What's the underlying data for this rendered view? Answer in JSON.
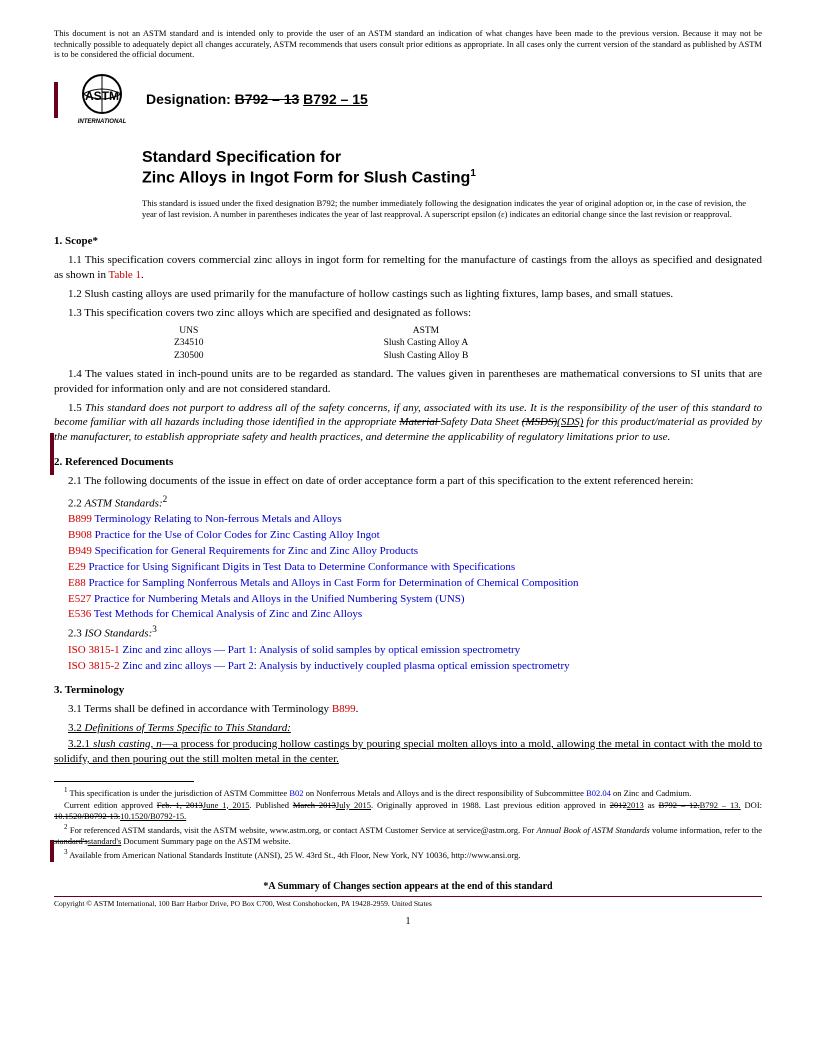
{
  "disclaimer": "This document is not an ASTM standard and is intended only to provide the user of an ASTM standard an indication of what changes have been made to the previous version. Because it may not be technically possible to adequately depict all changes accurately, ASTM recommends that users consult prior editions as appropriate. In all cases only the current version of the standard as published by ASTM is to be considered the official document.",
  "designation_label": "Designation:",
  "designation_old": "B792 – 13",
  "designation_new": "B792 – 15",
  "title_line1": "Standard Specification for",
  "title_line2": "Zinc Alloys in Ingot Form for Slush Casting",
  "title_super": "1",
  "issuance": "This standard is issued under the fixed designation B792; the number immediately following the designation indicates the year of original adoption or, in the case of revision, the year of last revision. A number in parentheses indicates the year of last reapproval. A superscript epsilon (ε) indicates an editorial change since the last revision or reapproval.",
  "sec1_header": "1. Scope*",
  "sec1_1a": "1.1 This specification covers commercial zinc alloys in ingot form for remelting for the manufacture of castings from the alloys as specified and designated as shown in ",
  "sec1_1_table": "Table 1",
  "sec1_1b": ".",
  "sec1_2": "1.2 Slush casting alloys are used primarily for the manufacture of hollow castings such as lighting fixtures, lamp bases, and small statues.",
  "sec1_3": "1.3 This specification covers two zinc alloys which are specified and designated as follows:",
  "alloy_uns_h": "UNS",
  "alloy_uns_1": "Z34510",
  "alloy_uns_2": "Z30500",
  "alloy_astm_h": "ASTM",
  "alloy_astm_1": "Slush Casting Alloy A",
  "alloy_astm_2": "Slush Casting Alloy B",
  "sec1_4": "1.4 The values stated in inch-pound units are to be regarded as standard. The values given in parentheses are mathematical conversions to SI units that are provided for information only and are not considered standard.",
  "sec1_5a": "1.5 ",
  "sec1_5b": "This standard does not purport to address all of the safety concerns, if any, associated with its use. It is the responsibility of the user of this standard to become familiar with all hazards including those identified in the appropriate ",
  "sec1_5_strike": "Material ",
  "sec1_5c": "Safety Data Sheet ",
  "sec1_5_strike2": "(MSDS)",
  "sec1_5_new": "(SDS)",
  "sec1_5d": " for this product/material as provided by the manufacturer, to establish appropriate safety and health practices, and determine the applicability of regulatory limitations prior to use.",
  "sec2_header": "2. Referenced Documents",
  "sec2_1": "2.1 The following documents of the issue in effect on date of order acceptance form a part of this specification to the extent referenced herein:",
  "sec2_2": "2.2 ",
  "sec2_2_label": "ASTM Standards:",
  "sec2_2_sup": "2",
  "refs": [
    {
      "code": "B899",
      "title": "Terminology Relating to Non-ferrous Metals and Alloys"
    },
    {
      "code": "B908",
      "title": "Practice for the Use of Color Codes for Zinc Casting Alloy Ingot"
    },
    {
      "code": "B949",
      "title": "Specification for General Requirements for Zinc and Zinc Alloy Products"
    },
    {
      "code": "E29",
      "title": "Practice for Using Significant Digits in Test Data to Determine Conformance with Specifications"
    },
    {
      "code": "E88",
      "title": "Practice for Sampling Nonferrous Metals and Alloys in Cast Form for Determination of Chemical Composition"
    },
    {
      "code": "E527",
      "title": "Practice for Numbering Metals and Alloys in the Unified Numbering System (UNS)"
    },
    {
      "code": "E536",
      "title": "Test Methods for Chemical Analysis of Zinc and Zinc Alloys"
    }
  ],
  "sec2_3": "2.3 ",
  "sec2_3_label": "ISO Standards:",
  "sec2_3_sup": "3",
  "iso_refs": [
    {
      "code": "ISO 3815-1",
      "title": "Zinc and zinc alloys — Part 1: Analysis of solid samples by optical emission spectrometry"
    },
    {
      "code": "ISO 3815-2",
      "title": "Zinc and zinc alloys — Part 2: Analysis by inductively coupled plasma optical emission spectrometry"
    }
  ],
  "sec3_header": "3. Terminology",
  "sec3_1a": "3.1 Terms shall be defined in accordance with Terminology ",
  "sec3_1_ref": "B899",
  "sec3_1b": ".",
  "sec3_2": "3.2 ",
  "sec3_2_label": "Definitions of Terms Specific to This Standard:",
  "sec3_2_1a": "3.2.1 ",
  "sec3_2_1_term": "slush casting, n",
  "sec3_2_1b": "—a process for producing hollow castings by pouring special molten alloys into a mold, allowing the metal in contact with the mold to solidify, and then pouring out the still molten metal in the center.",
  "fn1a": " This specification is under the jurisdiction of ASTM Committee ",
  "fn1_b02": "B02",
  "fn1b": " on Nonferrous Metals and Alloys and is the direct responsibility of Subcommittee ",
  "fn1_b0204": "B02.04",
  "fn1c": " on Zinc and Cadmium.",
  "fn1_line2a": "Current edition approved ",
  "fn1_line2_strike1": "Feb. 1, 2013",
  "fn1_line2_new1": "June 1, 2015",
  "fn1_line2b": ". Published ",
  "fn1_line2_strike2": "March 2013",
  "fn1_line2_new2": "July 2015",
  "fn1_line2c": ". Originally approved in 1988. Last previous edition approved in ",
  "fn1_line2_strike3": "2012",
  "fn1_line2_new3": "2013",
  "fn1_line2d": " as ",
  "fn1_line2_strike4": "B792 – 12.",
  "fn1_line2_new4": "B792 – 13.",
  "fn1_line2e": " DOI: ",
  "fn1_line2_strike5": "10.1520/B0792-13.",
  "fn1_line2_new5": "10.1520/B0792-15.",
  "fn2a": " For referenced ASTM standards, visit the ASTM website, www.astm.org, or contact ASTM Customer Service at service@astm.org. For ",
  "fn2_italic": "Annual Book of ASTM Standards",
  "fn2b": " volume information, refer to the ",
  "fn2_strike": "standard's",
  "fn2_new": "standard's",
  "fn2c": " Document Summary page on the ASTM website.",
  "fn3": " Available from American National Standards Institute (ANSI), 25 W. 43rd St., 4th Floor, New York, NY 10036, http://www.ansi.org.",
  "summary": "*A Summary of Changes section appears at the end of this standard",
  "copyright": "Copyright © ASTM International, 100 Barr Harbor Drive, PO Box C700, West Conshohocken, PA 19428-2959. United States",
  "page": "1"
}
